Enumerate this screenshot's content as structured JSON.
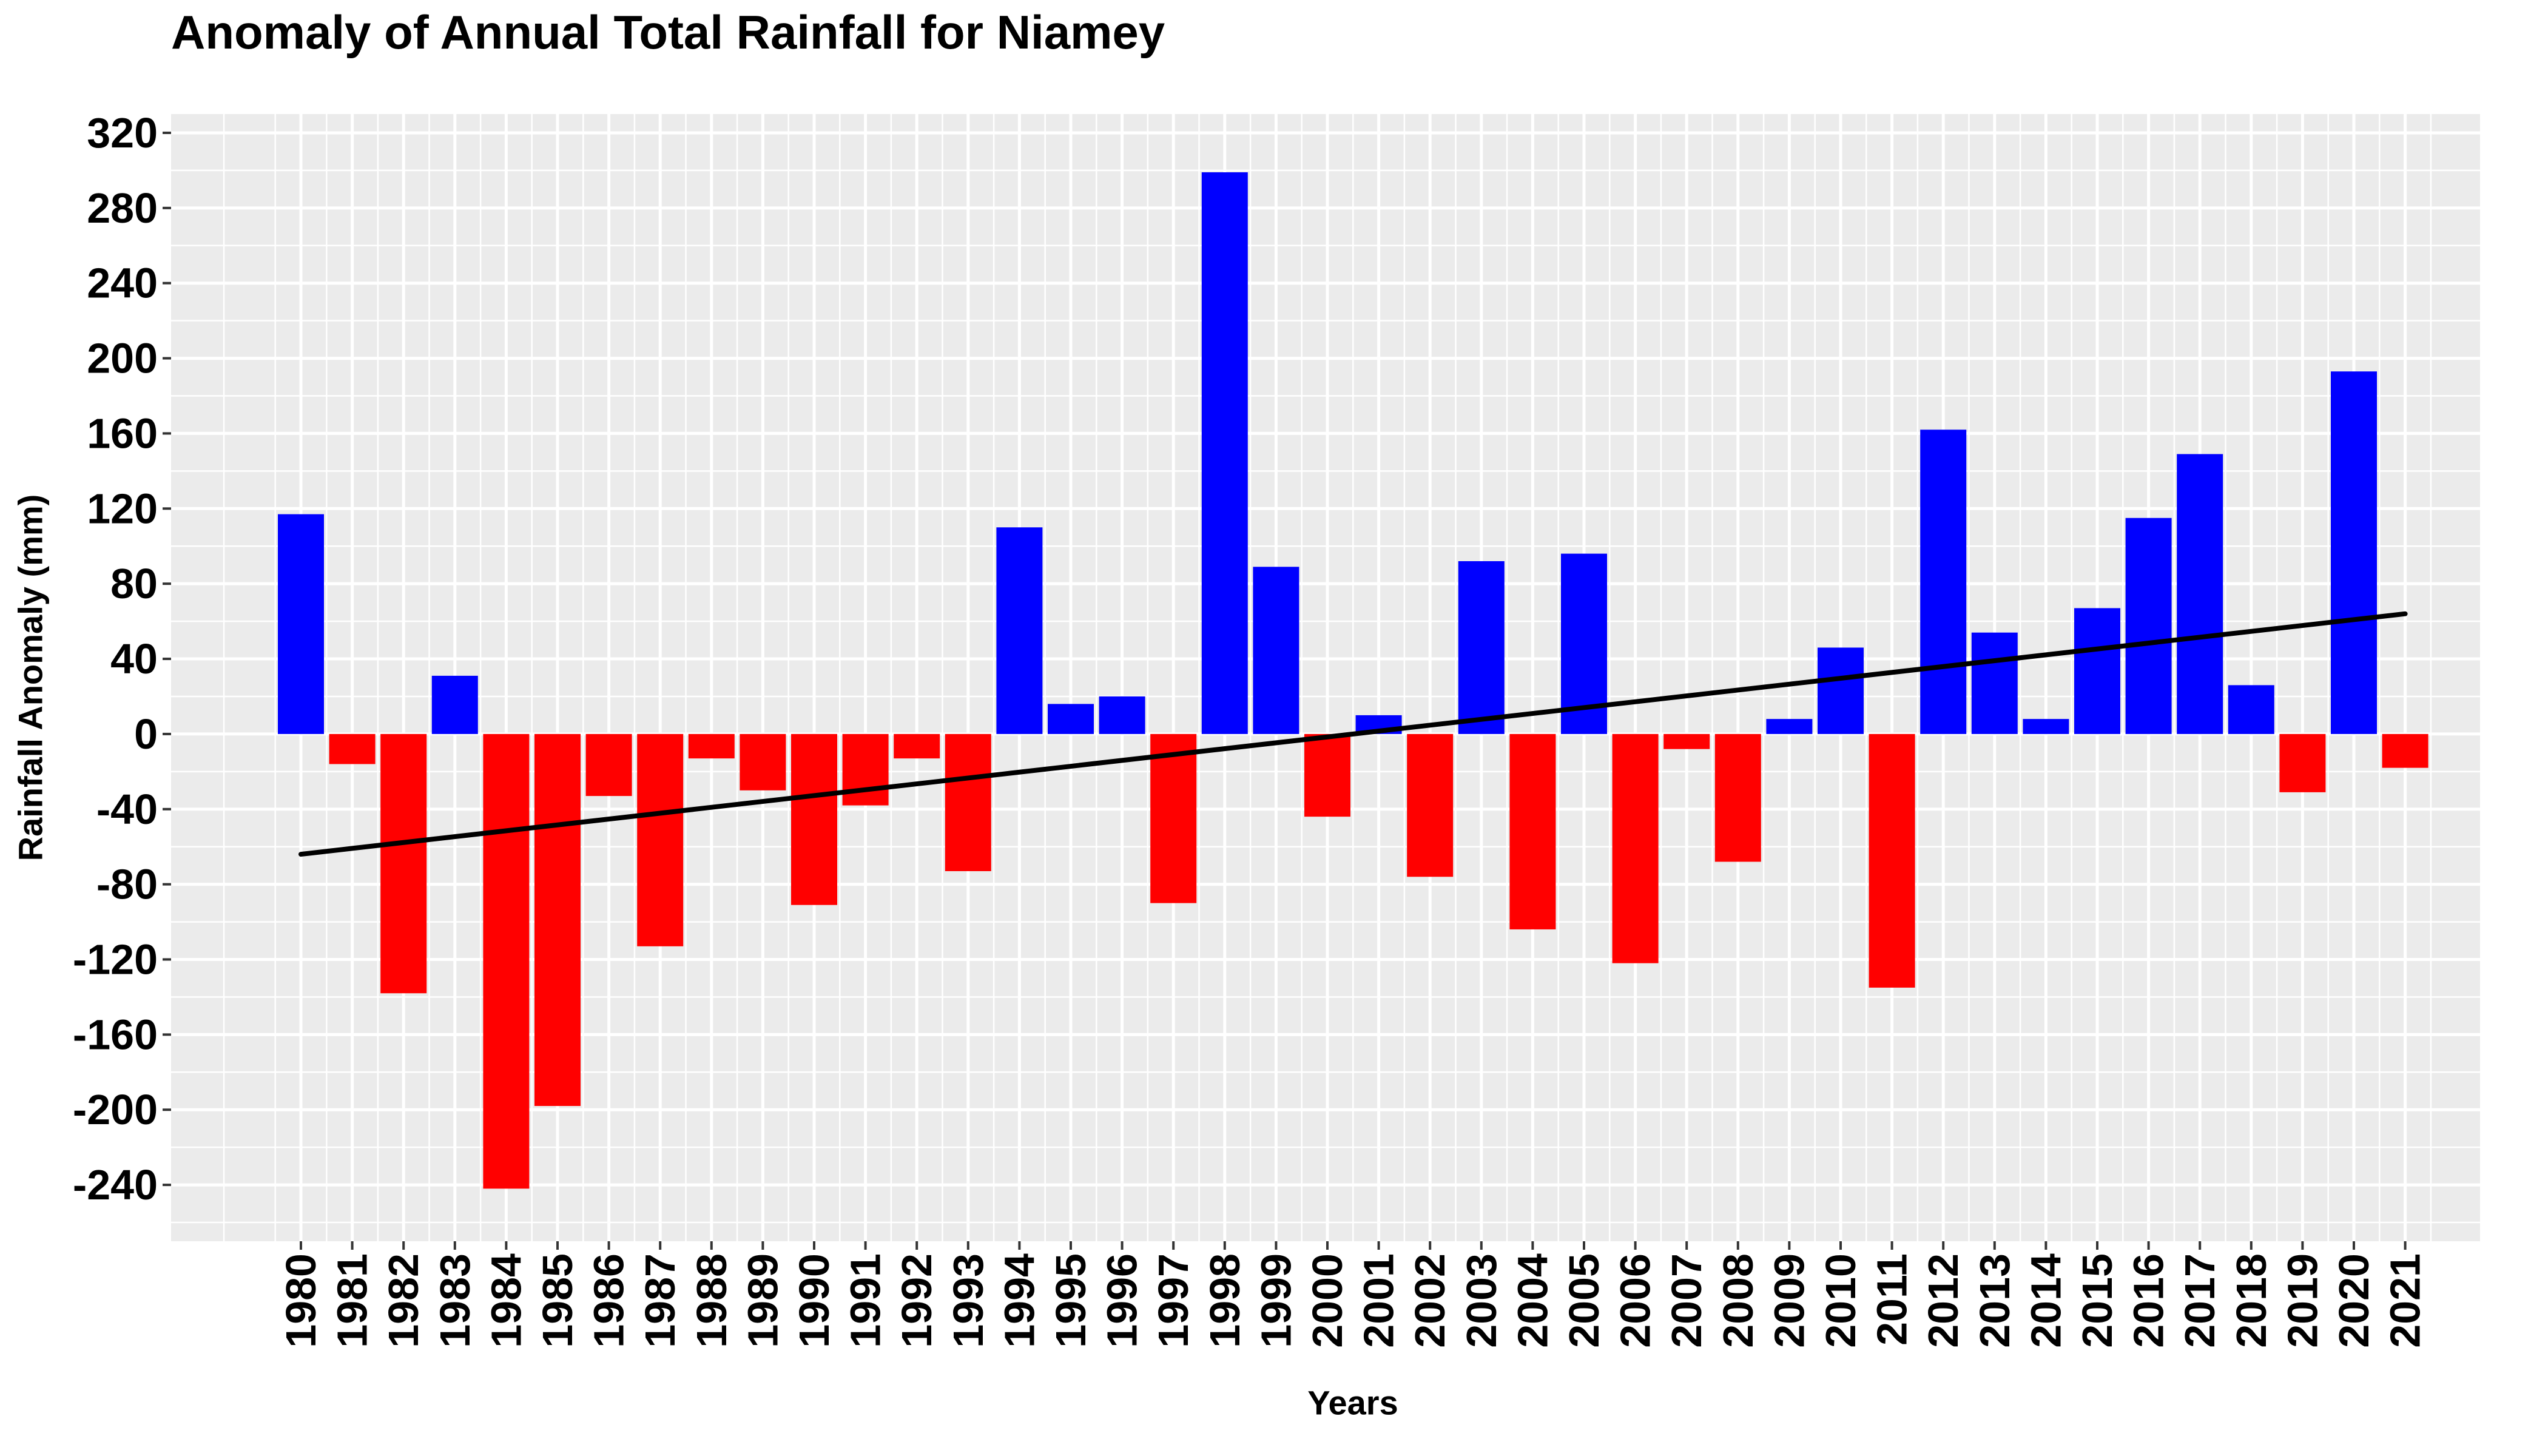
{
  "chart_data": {
    "type": "bar",
    "title": "Anomaly of Annual Total Rainfall for Niamey",
    "xlabel": "Years",
    "ylabel": "Rainfall Anomaly (mm)",
    "ylim": [
      -270,
      330
    ],
    "yticks": [
      320,
      280,
      240,
      200,
      160,
      120,
      80,
      40,
      0,
      -40,
      -80,
      -120,
      -160,
      -200,
      -240
    ],
    "grid": true,
    "legend": "none",
    "categories": [
      "1980",
      "1981",
      "1982",
      "1983",
      "1984",
      "1985",
      "1986",
      "1987",
      "1988",
      "1989",
      "1990",
      "1991",
      "1992",
      "1993",
      "1994",
      "1995",
      "1996",
      "1997",
      "1998",
      "1999",
      "2000",
      "2001",
      "2002",
      "2003",
      "2004",
      "2005",
      "2006",
      "2007",
      "2008",
      "2009",
      "2010",
      "2011",
      "2012",
      "2013",
      "2014",
      "2015",
      "2016",
      "2017",
      "2018",
      "2019",
      "2020",
      "2021"
    ],
    "values": [
      117,
      -16,
      -138,
      31,
      -242,
      -198,
      -33,
      -113,
      -13,
      -30,
      -91,
      -38,
      -13,
      -73,
      110,
      16,
      20,
      -90,
      299,
      89,
      -44,
      10,
      -76,
      92,
      -104,
      96,
      -122,
      -8,
      -68,
      8,
      46,
      -135,
      162,
      54,
      8,
      67,
      115,
      149,
      26,
      -31,
      193,
      -18
    ],
    "colors": {
      "positive": "#0000ff",
      "negative": "#ff0000",
      "trend": "#000000",
      "panel": "#ebebeb",
      "grid": "#ffffff"
    },
    "trend": {
      "x": [
        "1980",
        "2021"
      ],
      "y": [
        -64,
        64
      ]
    }
  }
}
